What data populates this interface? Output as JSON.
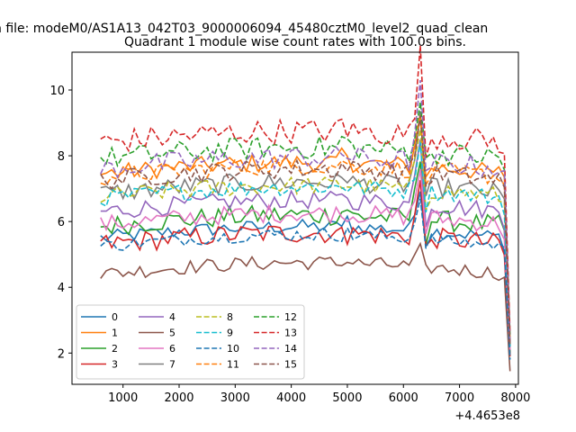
{
  "chart_data": {
    "type": "line",
    "suptitle": "n file: modeM0/AS1A13_042T03_9000006094_45480cztM0_level2_quad_clean",
    "title": "Quadrant 1 module wise count rates with 100.0s bins.",
    "x_offset_label": "+4.4653e8",
    "xlabel": "",
    "ylabel": "",
    "xlim": [
      90,
      8050
    ],
    "ylim": [
      1.05,
      11.15
    ],
    "x_ticks": [
      1000,
      2000,
      3000,
      4000,
      5000,
      6000,
      7000,
      8000
    ],
    "y_ticks": [
      2,
      4,
      6,
      8,
      10
    ],
    "x_tick_labels": [
      "1000",
      "2000",
      "3000",
      "4000",
      "5000",
      "6000",
      "7000",
      "8000"
    ],
    "y_tick_labels": [
      "2",
      "4",
      "6",
      "8",
      "10"
    ],
    "x_start": 600,
    "x_step": 100,
    "x_end": 7900,
    "legend_loc": "lower left",
    "legend_ncol": 4,
    "series": [
      {
        "name": "0",
        "color": "#1f77b4",
        "dash": "solid",
        "base": 5.5,
        "amp": 0.22,
        "peak": 1.4,
        "end": 1.9
      },
      {
        "name": "1",
        "color": "#ff7f0e",
        "dash": "solid",
        "base": 7.45,
        "amp": 0.28,
        "peak": 1.6,
        "end": 2.3
      },
      {
        "name": "2",
        "color": "#2ca02c",
        "dash": "solid",
        "base": 5.85,
        "amp": 0.32,
        "peak": 1.9,
        "end": 2.0
      },
      {
        "name": "3",
        "color": "#d62728",
        "dash": "solid",
        "base": 5.3,
        "amp": 0.32,
        "peak": 1.7,
        "end": 1.9
      },
      {
        "name": "4",
        "color": "#9467bd",
        "dash": "solid",
        "base": 6.3,
        "amp": 0.28,
        "peak": 2.2,
        "end": 2.2
      },
      {
        "name": "5",
        "color": "#8c564b",
        "dash": "solid",
        "base": 4.4,
        "amp": 0.22,
        "peak": 0.5,
        "end": 1.45
      },
      {
        "name": "6",
        "color": "#e377c2",
        "dash": "solid",
        "base": 5.9,
        "amp": 0.28,
        "peak": 1.5,
        "end": 2.1
      },
      {
        "name": "7",
        "color": "#7f7f7f",
        "dash": "solid",
        "base": 6.85,
        "amp": 0.3,
        "peak": 2.3,
        "end": 2.3
      },
      {
        "name": "8",
        "color": "#bcbd22",
        "dash": "dashed",
        "base": 6.75,
        "amp": 0.28,
        "peak": 1.9,
        "end": 2.2
      },
      {
        "name": "9",
        "color": "#17becf",
        "dash": "dashed",
        "base": 6.7,
        "amp": 0.26,
        "peak": 1.6,
        "end": 2.2
      },
      {
        "name": "10",
        "color": "#1f77b4",
        "dash": "dashed",
        "base": 5.25,
        "amp": 0.2,
        "peak": 1.4,
        "end": 1.8
      },
      {
        "name": "11",
        "color": "#ff7f0e",
        "dash": "dashed",
        "base": 7.35,
        "amp": 0.28,
        "peak": 1.6,
        "end": 2.3
      },
      {
        "name": "12",
        "color": "#2ca02c",
        "dash": "dashed",
        "base": 7.9,
        "amp": 0.35,
        "peak": 1.6,
        "end": 2.5
      },
      {
        "name": "13",
        "color": "#d62728",
        "dash": "dashed",
        "base": 8.4,
        "amp": 0.38,
        "peak": 2.4,
        "end": 2.6
      },
      {
        "name": "14",
        "color": "#9467bd",
        "dash": "dashed",
        "base": 7.6,
        "amp": 0.35,
        "peak": 2.2,
        "end": 2.3
      },
      {
        "name": "15",
        "color": "#8c564b",
        "dash": "dashed",
        "base": 7.25,
        "amp": 0.3,
        "peak": 1.8,
        "end": 2.2
      }
    ]
  }
}
